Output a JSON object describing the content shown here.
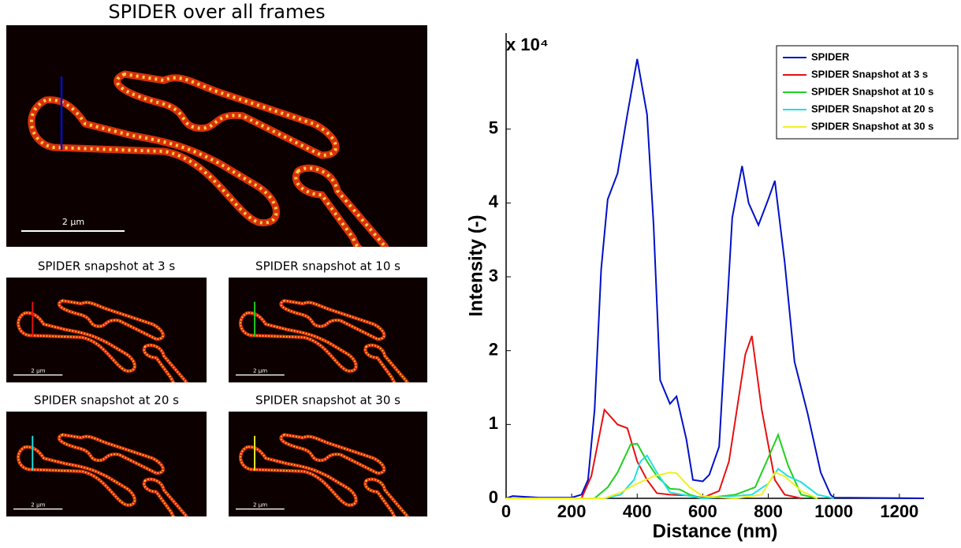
{
  "panels": [
    {
      "title": "SPIDER over all frames",
      "scale_bar": "2 µm"
    },
    {
      "title": "SPIDER snapshot at 3 s",
      "scale_bar": "2 µm"
    },
    {
      "title": "SPIDER snapshot at 10 s",
      "scale_bar": "2 µm"
    },
    {
      "title": "SPIDER snapshot at 20 s",
      "scale_bar": "2 µm"
    },
    {
      "title": "SPIDER snapshot at 30 s",
      "scale_bar": "2 µm"
    }
  ],
  "chart_data": {
    "type": "line",
    "x_label": "Distance (nm)",
    "y_label": "Intensity (-)",
    "y_multiplier": "x 10⁴",
    "xlim": [
      0,
      1275
    ],
    "xticks": [
      0,
      200,
      400,
      600,
      800,
      1000,
      1200
    ],
    "ylim": [
      0,
      63000
    ],
    "yticks": [
      {
        "value": 0,
        "label": "0"
      },
      {
        "value": 10000,
        "label": "1"
      },
      {
        "value": 20000,
        "label": "2"
      },
      {
        "value": 30000,
        "label": "3"
      },
      {
        "value": 40000,
        "label": "4"
      },
      {
        "value": 50000,
        "label": "5"
      }
    ],
    "legend": "top-right",
    "grid": false,
    "series": [
      {
        "name": "SPIDER",
        "color": "#0010c8",
        "x": [
          0,
          20,
          100,
          200,
          230,
          250,
          270,
          290,
          310,
          340,
          370,
          400,
          430,
          450,
          470,
          500,
          520,
          550,
          570,
          600,
          620,
          650,
          690,
          720,
          740,
          770,
          800,
          820,
          850,
          880,
          920,
          960,
          990,
          1000,
          1275
        ],
        "values": [
          0,
          300,
          100,
          100,
          500,
          2500,
          12000,
          31000,
          40500,
          44000,
          52000,
          59500,
          52000,
          37000,
          16000,
          12800,
          13800,
          8000,
          2500,
          2300,
          3200,
          7000,
          38000,
          45000,
          40000,
          37000,
          40500,
          43000,
          32000,
          18500,
          11500,
          3500,
          500,
          100,
          0
        ]
      },
      {
        "name": "SPIDER Snapshot at 3 s",
        "color": "#e81010",
        "x": [
          0,
          230,
          260,
          300,
          340,
          370,
          400,
          430,
          460,
          500,
          550,
          600,
          650,
          680,
          730,
          750,
          780,
          820,
          850,
          900
        ],
        "values": [
          0,
          0,
          3000,
          12000,
          10000,
          9500,
          5000,
          2500,
          700,
          500,
          400,
          100,
          1000,
          5000,
          19500,
          22000,
          12000,
          2500,
          500,
          0
        ]
      },
      {
        "name": "SPIDER Snapshot at 10 s",
        "color": "#20d020",
        "x": [
          0,
          270,
          310,
          340,
          380,
          400,
          430,
          460,
          500,
          530,
          560,
          600,
          700,
          760,
          800,
          830,
          860,
          900,
          950
        ],
        "values": [
          0,
          0,
          1500,
          3500,
          7300,
          7400,
          5000,
          3000,
          1300,
          1200,
          500,
          0,
          500,
          1500,
          5500,
          8600,
          4500,
          500,
          0
        ]
      },
      {
        "name": "SPIDER Snapshot at 20 s",
        "color": "#20e0e0",
        "x": [
          0,
          300,
          350,
          390,
          410,
          430,
          460,
          500,
          550,
          600,
          750,
          800,
          830,
          860,
          900,
          950,
          1000
        ],
        "values": [
          0,
          0,
          500,
          2500,
          5000,
          5800,
          3500,
          800,
          400,
          0,
          500,
          2000,
          4000,
          3000,
          2200,
          500,
          0
        ]
      },
      {
        "name": "SPIDER Snapshot at 30 s",
        "color": "#f0f020",
        "x": [
          0,
          300,
          350,
          400,
          450,
          500,
          520,
          560,
          600,
          700,
          780,
          820,
          850,
          900,
          950
        ],
        "values": [
          0,
          0,
          800,
          2000,
          3000,
          3500,
          3400,
          1500,
          300,
          0,
          500,
          3500,
          3000,
          1000,
          0
        ]
      }
    ]
  }
}
